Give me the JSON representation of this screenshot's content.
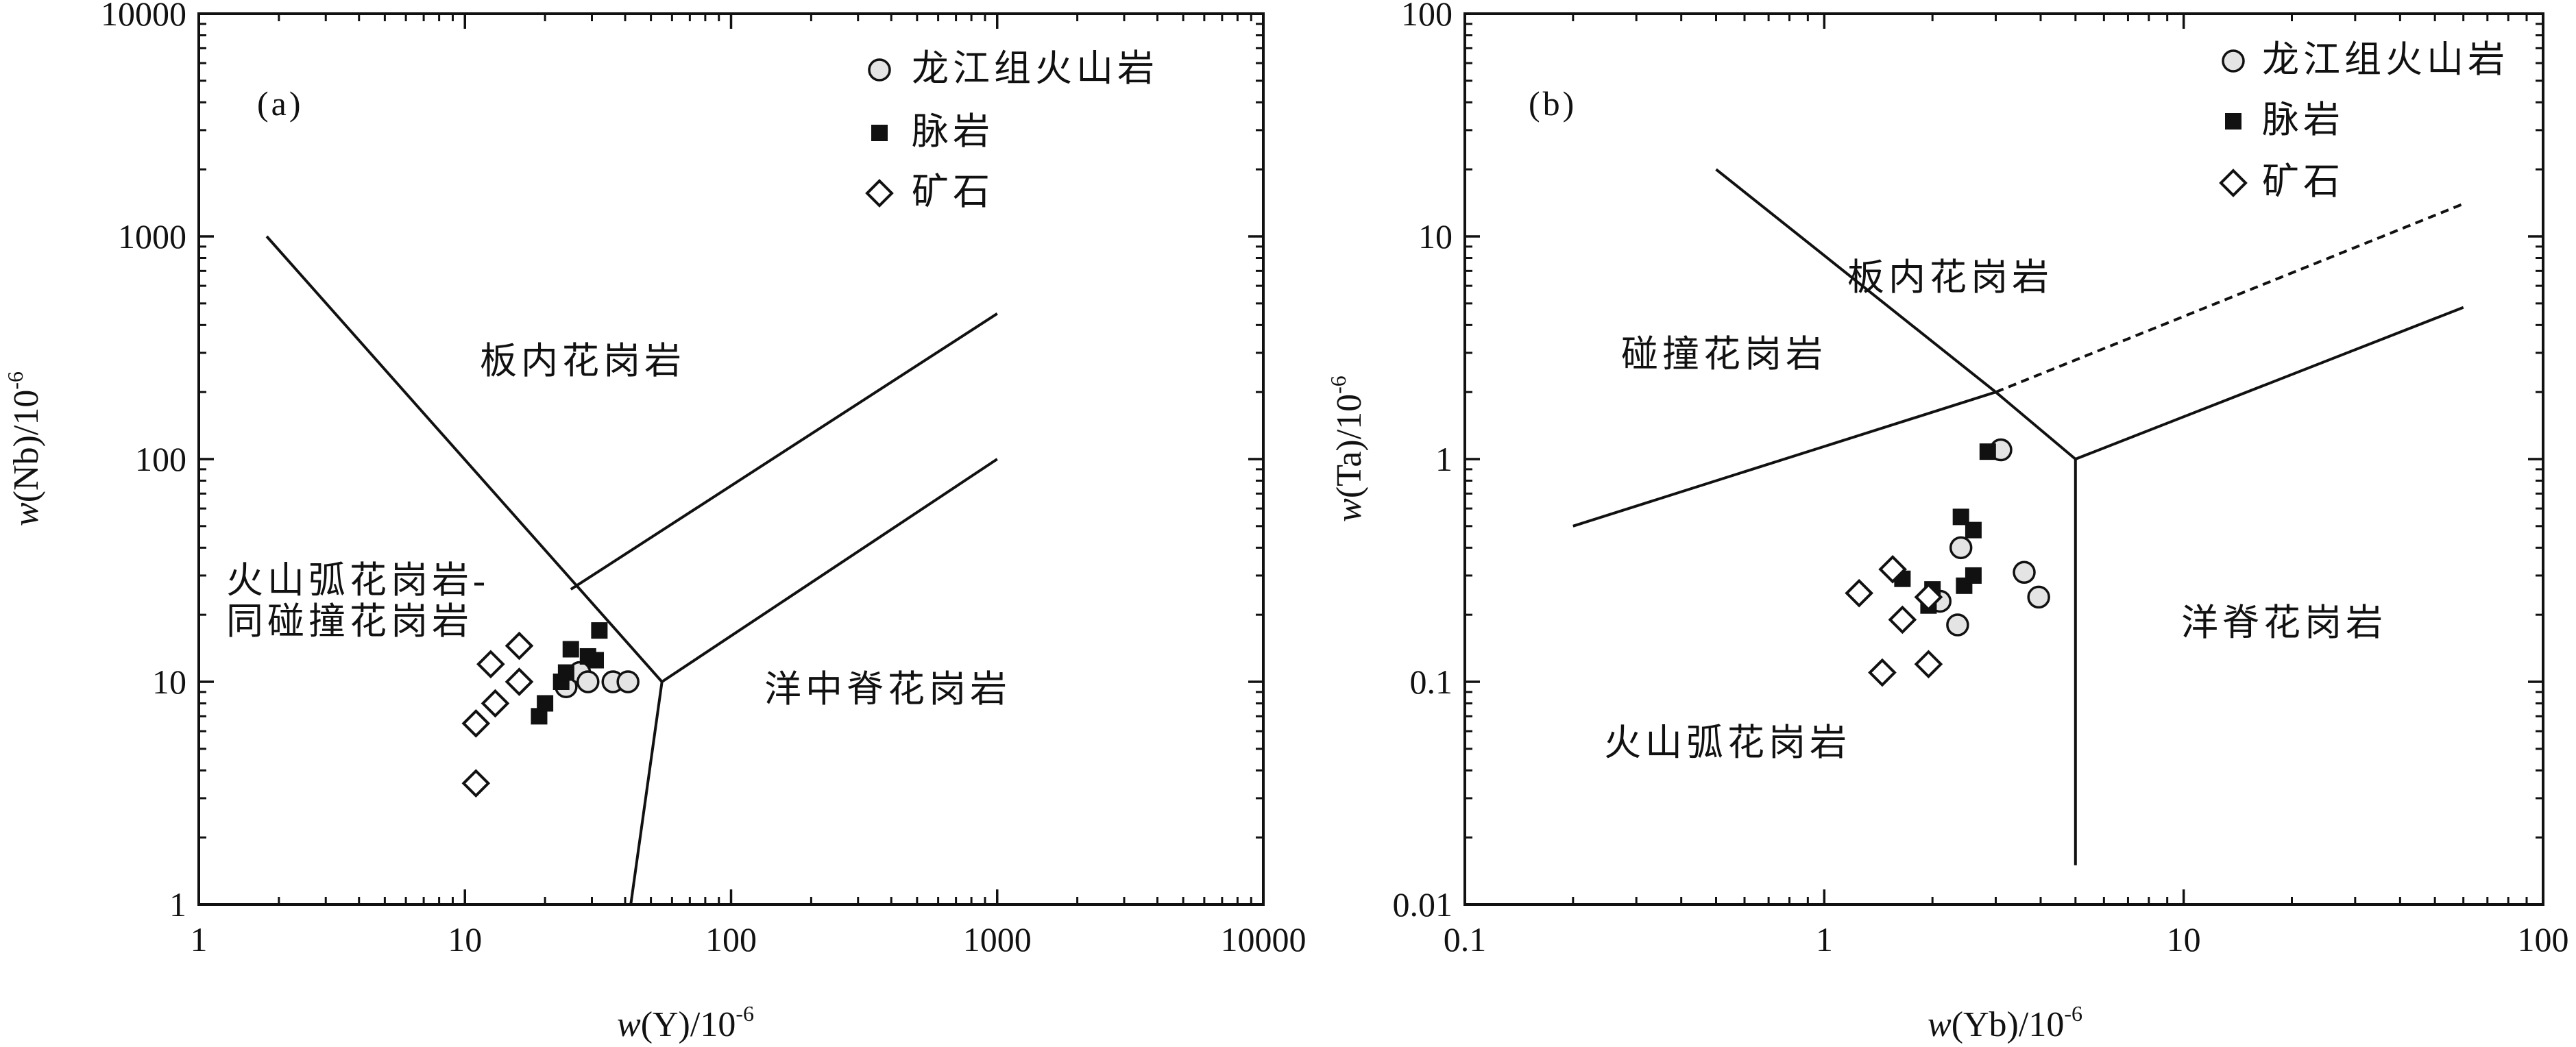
{
  "chart_data": [
    {
      "type": "scatter",
      "panel_label": "(a)",
      "xlabel": {
        "w": "w",
        "rest": "(Y)/10",
        "sup": "-6"
      },
      "ylabel": {
        "w": "w",
        "rest": "(Nb)/10",
        "sup": "-6"
      },
      "xscale": "log",
      "yscale": "log",
      "xlim": [
        1,
        10000
      ],
      "ylim": [
        1,
        10000
      ],
      "x_ticks": [
        "1",
        "10",
        "100",
        "1000",
        "10000"
      ],
      "y_ticks": [
        "1",
        "10",
        "100",
        "1000",
        "10000"
      ],
      "legend": {
        "position": "top-right",
        "items": [
          "龙江组火山岩",
          "脉岩",
          "矿石"
        ]
      },
      "regions": [
        "板内花岗岩",
        "火山弧花岗岩-",
        "同碰撞花岗岩",
        "洋中脊花岗岩"
      ],
      "boundaries": [
        {
          "style": "solid",
          "points": [
            [
              1.8,
              1000
            ],
            [
              55,
              10
            ],
            [
              42,
              1
            ]
          ]
        },
        {
          "style": "solid",
          "points": [
            [
              55,
              10
            ],
            [
              1000,
              100
            ]
          ]
        },
        {
          "style": "solid",
          "points": [
            [
              25,
              26
            ],
            [
              1000,
              450
            ]
          ]
        }
      ],
      "series": [
        {
          "name": "龙江组火山岩",
          "marker": "circle",
          "points": [
            [
              24,
              9.5
            ],
            [
              27,
              11
            ],
            [
              29,
              10
            ],
            [
              36,
              10
            ],
            [
              41,
              10
            ]
          ]
        },
        {
          "name": "脉岩",
          "marker": "square",
          "points": [
            [
              19,
              7
            ],
            [
              20,
              8
            ],
            [
              23,
              10
            ],
            [
              24,
              11
            ],
            [
              25,
              14
            ],
            [
              29,
              13
            ],
            [
              31,
              12.5
            ],
            [
              32,
              17
            ]
          ]
        },
        {
          "name": "矿石",
          "marker": "diamond",
          "points": [
            [
              11,
              3.5
            ],
            [
              11,
              6.5
            ],
            [
              13,
              8
            ],
            [
              12.5,
              12
            ],
            [
              16,
              10
            ],
            [
              16,
              14.5
            ]
          ]
        }
      ]
    },
    {
      "type": "scatter",
      "panel_label": "(b)",
      "xlabel": {
        "w": "w",
        "rest": "(Yb)/10",
        "sup": "-6"
      },
      "ylabel": {
        "w": "w",
        "rest": "(Ta)/10",
        "sup": "-6"
      },
      "xscale": "log",
      "yscale": "log",
      "xlim": [
        0.1,
        100
      ],
      "ylim": [
        0.01,
        100
      ],
      "x_ticks": [
        "0.1",
        "1",
        "10",
        "100"
      ],
      "y_ticks": [
        "0.01",
        "0.1",
        "1",
        "10",
        "100"
      ],
      "legend": {
        "position": "top-right",
        "items": [
          "龙江组火山岩",
          "脉岩",
          "矿石"
        ]
      },
      "regions": [
        "板内花岗岩",
        "碰撞花岗岩",
        "洋脊花岗岩",
        "火山弧花岗岩"
      ],
      "boundaries": [
        {
          "style": "solid",
          "points": [
            [
              0.5,
              20
            ],
            [
              3,
              2
            ],
            [
              5,
              1
            ],
            [
              5,
              0.015
            ]
          ]
        },
        {
          "style": "solid",
          "points": [
            [
              0.2,
              0.5
            ],
            [
              3,
              2
            ]
          ]
        },
        {
          "style": "solid",
          "points": [
            [
              5,
              1
            ],
            [
              60,
              4.8
            ]
          ]
        },
        {
          "style": "dashed",
          "points": [
            [
              3,
              2
            ],
            [
              60,
              14
            ]
          ]
        }
      ],
      "series": [
        {
          "name": "龙江组火山岩",
          "marker": "circle",
          "points": [
            [
              3.1,
              1.1
            ],
            [
              2.4,
              0.4
            ],
            [
              2.1,
              0.23
            ],
            [
              2.35,
              0.18
            ],
            [
              3.6,
              0.31
            ],
            [
              3.95,
              0.24
            ]
          ]
        },
        {
          "name": "脉岩",
          "marker": "square",
          "points": [
            [
              2.85,
              1.08
            ],
            [
              2.4,
              0.55
            ],
            [
              2.6,
              0.48
            ],
            [
              1.65,
              0.29
            ],
            [
              2.0,
              0.26
            ],
            [
              1.95,
              0.22
            ],
            [
              2.45,
              0.27
            ],
            [
              2.6,
              0.3
            ]
          ]
        },
        {
          "name": "矿石",
          "marker": "diamond",
          "points": [
            [
              1.25,
              0.25
            ],
            [
              1.55,
              0.32
            ],
            [
              1.65,
              0.19
            ],
            [
              1.45,
              0.11
            ],
            [
              1.95,
              0.12
            ],
            [
              1.95,
              0.24
            ]
          ]
        }
      ]
    }
  ]
}
